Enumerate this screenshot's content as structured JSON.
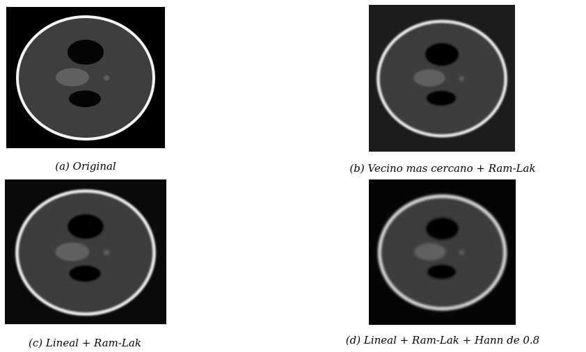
{
  "figures": [
    {
      "caption": "(a) Original"
    },
    {
      "caption": "(b) Vecino mas cercano + Ram-Lak"
    },
    {
      "caption": "(c) Lineal + Ram-Lak"
    },
    {
      "caption": "(d) Lineal + Ram-Lak + Hann de 0.8"
    }
  ]
}
